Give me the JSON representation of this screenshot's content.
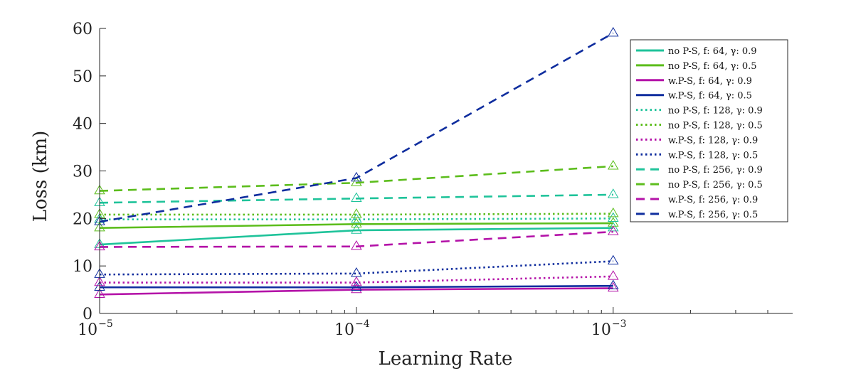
{
  "chart_data": {
    "type": "line",
    "xscale": "log",
    "x": [
      1e-05,
      0.0001,
      0.001
    ],
    "xlim": [
      1e-05,
      0.005
    ],
    "ylim": [
      0,
      60
    ],
    "xlabel": "Learning Rate",
    "ylabel": "Loss (km)",
    "xticks": [
      {
        "value": 1e-05,
        "base": "10",
        "exp": "−5"
      },
      {
        "value": 0.0001,
        "base": "10",
        "exp": "−4"
      },
      {
        "value": 0.001,
        "base": "10",
        "exp": "−3"
      }
    ],
    "yticks": [
      0,
      10,
      20,
      30,
      40,
      50,
      60
    ],
    "ytick_labels": [
      "0",
      "10",
      "20",
      "30",
      "40",
      "50",
      "60"
    ],
    "legend_position": "top-right",
    "marker": "triangle",
    "series": [
      {
        "name": "no P-S, f: 64, γ: 0.9",
        "color": "#1fc39a",
        "dash": "solid",
        "values": [
          14.5,
          17.5,
          18.0
        ]
      },
      {
        "name": "no P-S, f: 64, γ: 0.5",
        "color": "#5cbd1c",
        "dash": "solid",
        "values": [
          18.0,
          18.8,
          19.0
        ]
      },
      {
        "name": "w.P-S, f: 64, γ: 0.9",
        "color": "#b413a8",
        "dash": "solid",
        "values": [
          4.0,
          5.0,
          5.3
        ]
      },
      {
        "name": "w.P-S, f: 64, γ: 0.5",
        "color": "#0f2d9e",
        "dash": "solid",
        "values": [
          5.5,
          5.5,
          5.8
        ]
      },
      {
        "name": "no P-S, f: 128, γ: 0.9",
        "color": "#1fc39a",
        "dash": "dot",
        "values": [
          19.8,
          19.8,
          20.0
        ]
      },
      {
        "name": "no P-S, f: 128, γ: 0.5",
        "color": "#5cbd1c",
        "dash": "dot",
        "values": [
          20.8,
          20.8,
          21.0
        ]
      },
      {
        "name": "w.P-S, f: 128, γ: 0.9",
        "color": "#b413a8",
        "dash": "dot",
        "values": [
          6.5,
          6.5,
          7.8
        ]
      },
      {
        "name": "w.P-S, f: 128, γ: 0.5",
        "color": "#0f2d9e",
        "dash": "dot",
        "values": [
          8.2,
          8.4,
          11.0
        ]
      },
      {
        "name": "no P-S, f: 256, γ: 0.9",
        "color": "#1fc39a",
        "dash": "dash",
        "values": [
          23.3,
          24.2,
          25.0
        ]
      },
      {
        "name": "no P-S, f: 256, γ: 0.5",
        "color": "#5cbd1c",
        "dash": "dash",
        "values": [
          25.8,
          27.5,
          31.0
        ]
      },
      {
        "name": "w.P-S, f: 256, γ: 0.9",
        "color": "#b413a8",
        "dash": "dash",
        "values": [
          14.0,
          14.1,
          17.2
        ]
      },
      {
        "name": "w.P-S, f: 256, γ: 0.5",
        "color": "#0f2d9e",
        "dash": "dash",
        "values": [
          19.3,
          28.5,
          59.0
        ]
      }
    ]
  }
}
